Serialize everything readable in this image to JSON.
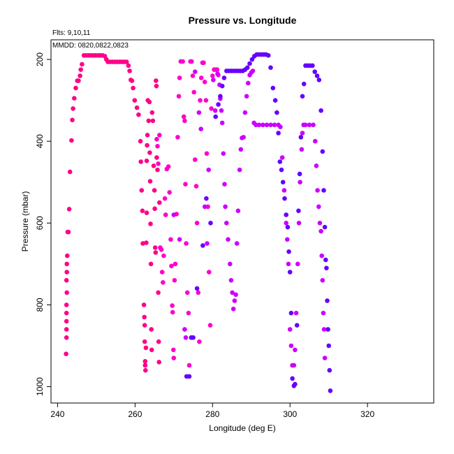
{
  "chart_data": {
    "type": "scatter",
    "title": "Pressure vs. Longitude",
    "xlabel": "Longitude (deg E)",
    "ylabel": "Pressure (mbar)",
    "notes": [
      "Flts: 9,10,11",
      "MMDD: 0820,0822,0823"
    ],
    "xlim": [
      238.3,
      337.1
    ],
    "ylim": [
      1040,
      152
    ],
    "y_reversed": true,
    "x_ticks": [
      "240",
      "260",
      "280",
      "300",
      "320"
    ],
    "y_ticks": [
      "200",
      "400",
      "600",
      "800",
      "1000"
    ],
    "grid": false,
    "legend": "none",
    "series": [
      {
        "color": "#ff0088",
        "points": [
          [
            242.2,
            920
          ],
          [
            242.3,
            880
          ],
          [
            242.3,
            860
          ],
          [
            242.3,
            840
          ],
          [
            242.3,
            820
          ],
          [
            242.3,
            800
          ],
          [
            242.4,
            770
          ],
          [
            242.3,
            740
          ],
          [
            242.4,
            720
          ],
          [
            242.4,
            700
          ],
          [
            242.5,
            680
          ],
          [
            242.6,
            622
          ],
          [
            242.8,
            622
          ],
          [
            243.0,
            566
          ],
          [
            243.2,
            475
          ],
          [
            243.6,
            398
          ],
          [
            243.8,
            348
          ],
          [
            244.0,
            320
          ],
          [
            244.3,
            295
          ],
          [
            244.7,
            270
          ],
          [
            245.1,
            252
          ],
          [
            245.4,
            252
          ],
          [
            245.8,
            240
          ],
          [
            246.0,
            225
          ],
          [
            246.3,
            212
          ],
          [
            246.8,
            190
          ],
          [
            247.4,
            190
          ],
          [
            248.0,
            190
          ],
          [
            248.6,
            190
          ],
          [
            249.2,
            190
          ],
          [
            249.8,
            190
          ],
          [
            250.4,
            190
          ],
          [
            251.0,
            190
          ],
          [
            251.6,
            190
          ],
          [
            252.2,
            192
          ],
          [
            252.6,
            200
          ],
          [
            253.0,
            206
          ],
          [
            253.6,
            206
          ],
          [
            254.2,
            206
          ],
          [
            254.8,
            206
          ],
          [
            255.4,
            206
          ],
          [
            256.0,
            206
          ],
          [
            256.6,
            206
          ],
          [
            257.2,
            206
          ],
          [
            257.8,
            206
          ],
          [
            258.3,
            215
          ],
          [
            258.6,
            228
          ],
          [
            258.9,
            250
          ],
          [
            259.2,
            252
          ],
          [
            259.5,
            270
          ],
          [
            259.9,
            300
          ],
          [
            260.5,
            318
          ],
          [
            260.9,
            335
          ],
          [
            261.4,
            400
          ],
          [
            261.5,
            450
          ],
          [
            261.7,
            520
          ],
          [
            261.9,
            570
          ],
          [
            262.0,
            650
          ],
          [
            262.3,
            800
          ],
          [
            262.4,
            830
          ],
          [
            262.5,
            850
          ],
          [
            262.5,
            890
          ],
          [
            262.6,
            938
          ],
          [
            262.6,
            948
          ],
          [
            262.7,
            960
          ],
          [
            262.8,
            905
          ],
          [
            262.9,
            648
          ],
          [
            263.0,
            575
          ],
          [
            263.0,
            448
          ],
          [
            263.1,
            410
          ],
          [
            263.2,
            385
          ],
          [
            263.3,
            300
          ],
          [
            263.5,
            350
          ],
          [
            263.7,
            304
          ],
          [
            263.8,
            428
          ],
          [
            263.9,
            498
          ],
          [
            264.0,
            602
          ],
          [
            264.1,
            700
          ],
          [
            264.2,
            860
          ],
          [
            264.3,
            910
          ],
          [
            264.4,
            330
          ],
          [
            264.6,
            350
          ],
          [
            264.8,
            460
          ],
          [
            265.0,
            520
          ],
          [
            265.1,
            565
          ],
          [
            265.2,
            660
          ],
          [
            265.3,
            672
          ],
          [
            265.4,
            252
          ],
          [
            265.5,
            265
          ],
          [
            265.6,
            440
          ],
          [
            265.8,
            470
          ],
          [
            266.0,
            770
          ],
          [
            266.1,
            890
          ],
          [
            266.2,
            940
          ],
          [
            266.3,
            550
          ]
        ]
      },
      {
        "color": "#ff00cc",
        "points": [
          [
            265.6,
            395
          ],
          [
            265.8,
            412
          ],
          [
            266.0,
            455
          ],
          [
            266.3,
            385
          ],
          [
            266.5,
            660
          ],
          [
            266.8,
            665
          ],
          [
            267.0,
            720
          ],
          [
            267.2,
            745
          ],
          [
            267.4,
            680
          ],
          [
            267.7,
            540
          ],
          [
            267.9,
            580
          ],
          [
            268.2,
            468
          ],
          [
            268.6,
            462
          ],
          [
            268.9,
            525
          ],
          [
            269.2,
            640
          ],
          [
            269.4,
            705
          ],
          [
            269.6,
            802
          ],
          [
            269.7,
            818
          ],
          [
            269.9,
            910
          ],
          [
            270.0,
            930
          ],
          [
            270.2,
            740
          ],
          [
            270.4,
            700
          ],
          [
            270.7,
            578
          ],
          [
            271.0,
            390
          ],
          [
            271.3,
            290
          ],
          [
            271.5,
            245
          ],
          [
            271.8,
            205
          ],
          [
            272.3,
            205
          ],
          [
            272.6,
            340
          ],
          [
            272.8,
            350
          ],
          [
            273.0,
            505
          ],
          [
            273.2,
            650
          ],
          [
            273.5,
            770
          ],
          [
            273.8,
            820
          ],
          [
            274.0,
            948
          ],
          [
            274.3,
            205
          ],
          [
            274.6,
            205
          ],
          [
            274.9,
            240
          ],
          [
            275.2,
            280
          ],
          [
            275.5,
            445
          ],
          [
            275.8,
            510
          ],
          [
            276.0,
            600
          ],
          [
            276.3,
            770
          ],
          [
            276.6,
            890
          ],
          [
            276.8,
            300
          ],
          [
            277.1,
            245
          ],
          [
            277.4,
            208
          ],
          [
            277.7,
            208
          ],
          [
            278.0,
            255
          ],
          [
            278.3,
            300
          ],
          [
            278.5,
            430
          ],
          [
            278.8,
            560
          ],
          [
            279.1,
            720
          ],
          [
            279.4,
            850
          ],
          [
            279.7,
            320
          ],
          [
            280.0,
            240
          ],
          [
            280.4,
            225
          ],
          [
            280.8,
            225
          ],
          [
            281.2,
            225
          ],
          [
            281.5,
            238
          ]
        ]
      },
      {
        "color": "#cc00ff",
        "points": [
          [
            270.0,
            580
          ],
          [
            271.5,
            640
          ],
          [
            272.8,
            860
          ],
          [
            273.1,
            880
          ],
          [
            275.5,
            230
          ],
          [
            276.5,
            330
          ],
          [
            277.0,
            370
          ],
          [
            278.0,
            560
          ],
          [
            278.6,
            650
          ],
          [
            279.0,
            470
          ],
          [
            280.2,
            250
          ],
          [
            280.7,
            325
          ],
          [
            281.3,
            235
          ],
          [
            281.8,
            262
          ],
          [
            282.0,
            296
          ],
          [
            282.3,
            325
          ],
          [
            282.5,
            355
          ],
          [
            282.8,
            430
          ],
          [
            283.1,
            505
          ],
          [
            283.3,
            560
          ],
          [
            283.6,
            600
          ],
          [
            284.0,
            640
          ],
          [
            284.5,
            700
          ],
          [
            284.8,
            740
          ],
          [
            285.1,
            770
          ],
          [
            285.4,
            810
          ],
          [
            285.7,
            790
          ],
          [
            286.0,
            775
          ],
          [
            286.3,
            650
          ],
          [
            286.6,
            570
          ],
          [
            287.0,
            470
          ],
          [
            287.3,
            420
          ],
          [
            287.6,
            392
          ],
          [
            288.0,
            390
          ],
          [
            288.4,
            330
          ],
          [
            288.8,
            290
          ],
          [
            289.2,
            258
          ],
          [
            289.6,
            238
          ],
          [
            290.0,
            232
          ],
          [
            290.4,
            228
          ],
          [
            290.7,
            355
          ],
          [
            291.2,
            360
          ],
          [
            292.0,
            360
          ],
          [
            293.0,
            360
          ],
          [
            294.0,
            360
          ],
          [
            295.0,
            360
          ],
          [
            296.0,
            360
          ],
          [
            297.0,
            360
          ],
          [
            297.5,
            365
          ],
          [
            298.0,
            440
          ],
          [
            298.5,
            520
          ],
          [
            299.0,
            600
          ],
          [
            299.3,
            640
          ],
          [
            299.6,
            700
          ],
          [
            300.0,
            860
          ],
          [
            300.3,
            900
          ],
          [
            300.6,
            948
          ],
          [
            301.0,
            948
          ],
          [
            301.3,
            910
          ],
          [
            301.6,
            820
          ],
          [
            302.0,
            700
          ],
          [
            302.3,
            600
          ],
          [
            302.6,
            500
          ],
          [
            303.0,
            420
          ],
          [
            303.2,
            380
          ],
          [
            303.5,
            360
          ],
          [
            304.0,
            360
          ],
          [
            305.0,
            360
          ],
          [
            306.0,
            360
          ],
          [
            306.5,
            400
          ],
          [
            306.8,
            460
          ],
          [
            307.1,
            520
          ],
          [
            307.4,
            560
          ],
          [
            307.7,
            600
          ],
          [
            308.0,
            620
          ],
          [
            308.2,
            680
          ],
          [
            308.4,
            740
          ],
          [
            308.6,
            820
          ],
          [
            308.8,
            860
          ],
          [
            309.0,
            930
          ]
        ]
      },
      {
        "color": "#6600ff",
        "points": [
          [
            273.3,
            975
          ],
          [
            274.0,
            975
          ],
          [
            274.5,
            880
          ],
          [
            275.0,
            880
          ],
          [
            276.0,
            760
          ],
          [
            277.5,
            655
          ],
          [
            278.4,
            540
          ],
          [
            279.5,
            600
          ],
          [
            280.8,
            340
          ],
          [
            281.5,
            310
          ],
          [
            282.0,
            290
          ],
          [
            282.5,
            265
          ],
          [
            283.0,
            245
          ],
          [
            283.6,
            228
          ],
          [
            284.2,
            228
          ],
          [
            284.8,
            228
          ],
          [
            285.4,
            228
          ],
          [
            286.0,
            228
          ],
          [
            286.6,
            228
          ],
          [
            287.2,
            228
          ],
          [
            287.8,
            228
          ],
          [
            288.4,
            225
          ],
          [
            289.0,
            220
          ],
          [
            289.6,
            210
          ],
          [
            290.2,
            200
          ],
          [
            290.8,
            192
          ],
          [
            291.4,
            188
          ],
          [
            292.0,
            188
          ],
          [
            292.6,
            188
          ],
          [
            293.2,
            188
          ],
          [
            293.8,
            188
          ],
          [
            294.4,
            190
          ],
          [
            295.0,
            220
          ],
          [
            295.6,
            270
          ],
          [
            296.2,
            300
          ],
          [
            296.6,
            330
          ],
          [
            297.0,
            380
          ],
          [
            297.4,
            450
          ],
          [
            297.8,
            470
          ],
          [
            298.2,
            500
          ],
          [
            298.6,
            540
          ],
          [
            299.0,
            580
          ],
          [
            299.4,
            610
          ],
          [
            299.7,
            670
          ],
          [
            300.0,
            720
          ],
          [
            300.3,
            820
          ],
          [
            300.6,
            980
          ],
          [
            301.0,
            998
          ],
          [
            301.3,
            994
          ],
          [
            301.8,
            850
          ],
          [
            302.2,
            570
          ],
          [
            302.5,
            480
          ],
          [
            302.8,
            390
          ],
          [
            303.2,
            290
          ],
          [
            303.6,
            260
          ],
          [
            304.0,
            215
          ],
          [
            304.6,
            215
          ],
          [
            305.2,
            215
          ],
          [
            305.8,
            215
          ],
          [
            306.4,
            230
          ],
          [
            307.0,
            240
          ],
          [
            307.5,
            250
          ],
          [
            308.0,
            325
          ],
          [
            308.4,
            425
          ],
          [
            308.7,
            520
          ],
          [
            309.0,
            610
          ],
          [
            309.2,
            690
          ],
          [
            309.4,
            710
          ],
          [
            309.6,
            790
          ],
          [
            309.8,
            860
          ],
          [
            310.0,
            900
          ],
          [
            310.2,
            960
          ],
          [
            310.4,
            1010
          ]
        ]
      }
    ]
  }
}
